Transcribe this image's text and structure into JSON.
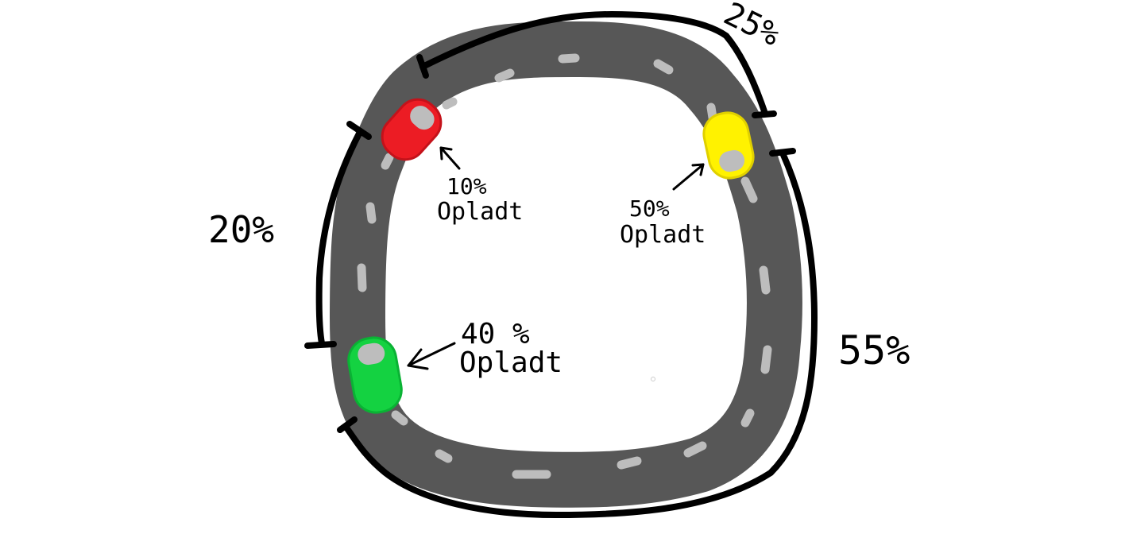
{
  "segments": [
    {
      "id": "top-right",
      "label": "25%"
    },
    {
      "id": "left",
      "label": "20%"
    },
    {
      "id": "right-bottom",
      "label": "55%"
    }
  ],
  "cars": [
    {
      "id": "red",
      "color": "#ec1c24",
      "percent_line": "10%",
      "status_line": "Opladt"
    },
    {
      "id": "yellow",
      "color": "#fff200",
      "percent_line": "50%",
      "status_line": "Opladt"
    },
    {
      "id": "green",
      "color": "#14d241",
      "percent_line": "40 %",
      "status_line": "Opladt"
    }
  ],
  "colors": {
    "road": "#575757",
    "lane_marking": "#bdbdbd",
    "ink": "#000000",
    "background": "#ffffff"
  }
}
